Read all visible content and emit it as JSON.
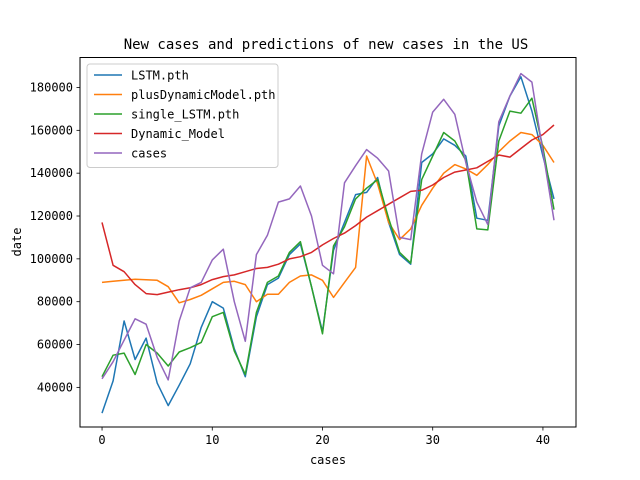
{
  "chart_data": {
    "type": "line",
    "title": "New cases and predictions of new cases in the US",
    "xlabel": "cases",
    "ylabel": "date",
    "xlim": [
      -2,
      43
    ],
    "ylim": [
      21500,
      194000
    ],
    "x_ticks": [
      0,
      10,
      20,
      30,
      40
    ],
    "y_ticks": [
      40000,
      60000,
      80000,
      100000,
      120000,
      140000,
      160000,
      180000
    ],
    "x_tick_labels": [
      "0",
      "10",
      "20",
      "30",
      "40"
    ],
    "y_tick_labels": [
      "40000",
      "60000",
      "80000",
      "100000",
      "120000",
      "140000",
      "160000",
      "180000"
    ],
    "grid": false,
    "legend_position": "upper-left",
    "x": [
      0,
      1,
      2,
      3,
      4,
      5,
      6,
      7,
      8,
      9,
      10,
      11,
      12,
      13,
      14,
      15,
      16,
      17,
      18,
      19,
      20,
      21,
      22,
      23,
      24,
      25,
      26,
      27,
      28,
      29,
      30,
      31,
      32,
      33,
      34,
      35,
      36,
      37,
      38,
      39,
      40,
      41
    ],
    "series": [
      {
        "name": "LSTM.pth",
        "color": "#1f77b4",
        "values": [
          28000,
          43000,
          71000,
          53000,
          63000,
          42000,
          31500,
          41000,
          51000,
          68000,
          80000,
          77000,
          58000,
          45000,
          73000,
          88000,
          91000,
          102000,
          107000,
          87000,
          66000,
          104000,
          117000,
          130000,
          131000,
          138000,
          117000,
          102000,
          97500,
          145000,
          149000,
          156000,
          153000,
          148000,
          119000,
          118000,
          162000,
          176000,
          185000,
          169000,
          148000,
          128000
        ]
      },
      {
        "name": "plusDynamicModel.pth",
        "color": "#ff7f0e",
        "values": [
          89000,
          89500,
          90000,
          90500,
          90200,
          90000,
          87000,
          79500,
          81000,
          83000,
          86000,
          89000,
          89500,
          88000,
          80000,
          83500,
          83500,
          89000,
          92000,
          92500,
          90000,
          82000,
          89000,
          96000,
          148000,
          135000,
          117000,
          109000,
          114000,
          125000,
          133000,
          140000,
          144000,
          142000,
          139000,
          144000,
          150000,
          155000,
          159000,
          158000,
          153000,
          145000
        ]
      },
      {
        "name": "single_LSTM.pth",
        "color": "#2ca02c",
        "values": [
          45000,
          55000,
          56000,
          46000,
          60000,
          56000,
          50000,
          56500,
          58500,
          61000,
          73000,
          75000,
          57000,
          46000,
          75000,
          89000,
          92000,
          103000,
          108000,
          87000,
          65000,
          106000,
          115000,
          128000,
          133000,
          137000,
          119000,
          103000,
          98000,
          137000,
          148000,
          159000,
          155000,
          146000,
          114000,
          113500,
          155000,
          169000,
          168000,
          175000,
          152000,
          123000
        ]
      },
      {
        "name": "Dynamic_Model",
        "color": "#d62728",
        "values": [
          117000,
          97000,
          94000,
          88000,
          83800,
          83300,
          84500,
          85600,
          86500,
          88000,
          90300,
          91700,
          92500,
          94000,
          95500,
          96000,
          97500,
          100000,
          101000,
          103000,
          106500,
          109500,
          112000,
          115500,
          119500,
          122500,
          125500,
          128500,
          131500,
          132000,
          134500,
          138000,
          140500,
          141500,
          142500,
          145500,
          148500,
          147500,
          151500,
          155500,
          158000,
          162500
        ]
      },
      {
        "name": "cases",
        "color": "#9467bd",
        "values": [
          44000,
          52000,
          62000,
          72000,
          69500,
          54000,
          43500,
          71000,
          86500,
          89000,
          99500,
          104500,
          80000,
          61500,
          102000,
          111000,
          126500,
          128000,
          134000,
          120000,
          97000,
          93000,
          135500,
          143500,
          151000,
          147000,
          141000,
          110000,
          109000,
          149000,
          168500,
          174500,
          167500,
          145000,
          126500,
          116000,
          164000,
          176000,
          186500,
          182500,
          150000,
          118000
        ]
      }
    ]
  }
}
